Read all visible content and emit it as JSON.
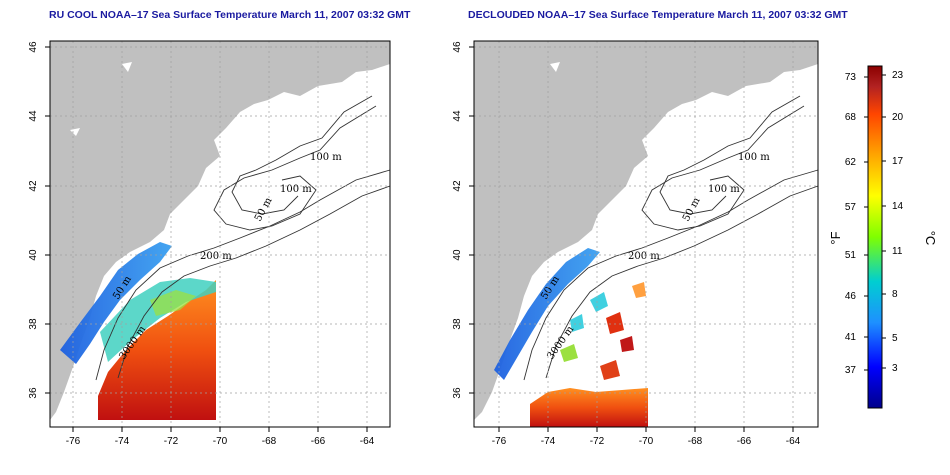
{
  "panels": [
    {
      "title": "RU COOL NOAA–17 Sea Surface Temperature March 11, 2007 03:32 GMT",
      "variant": "raw"
    },
    {
      "title": "DECLOUDED NOAA–17 Sea Surface Temperature March 11, 2007 03:32 GMT",
      "variant": "declouded"
    }
  ],
  "map": {
    "lon_ticks": [
      "-76",
      "-74",
      "-72",
      "-70",
      "-68",
      "-66",
      "-64"
    ],
    "lat_ticks": [
      "46",
      "44",
      "42",
      "40",
      "38",
      "36"
    ],
    "contour_labels": {
      "m100a": "100 m",
      "m100b": "100 m",
      "m50": "50 m",
      "m200": "200 m",
      "m50b": "50 m",
      "m3000": "3000 m"
    }
  },
  "colorbar": {
    "fahrenheit_ticks": [
      "73",
      "68",
      "62",
      "57",
      "51",
      "46",
      "41",
      "37"
    ],
    "celsius_ticks": [
      "23",
      "20",
      "17",
      "14",
      "11",
      "8",
      "5",
      "3"
    ],
    "fahrenheit_unit": "°F",
    "celsius_unit": "°C",
    "colors": [
      "#00008b",
      "#0000ff",
      "#1e90ff",
      "#00ced1",
      "#7fff00",
      "#ffff00",
      "#ffa500",
      "#ff4500",
      "#b22222",
      "#8b0000"
    ]
  },
  "colors": {
    "land": "#c0c0c0",
    "grid": "#a0a0a0",
    "title": "#1a1aa0"
  }
}
